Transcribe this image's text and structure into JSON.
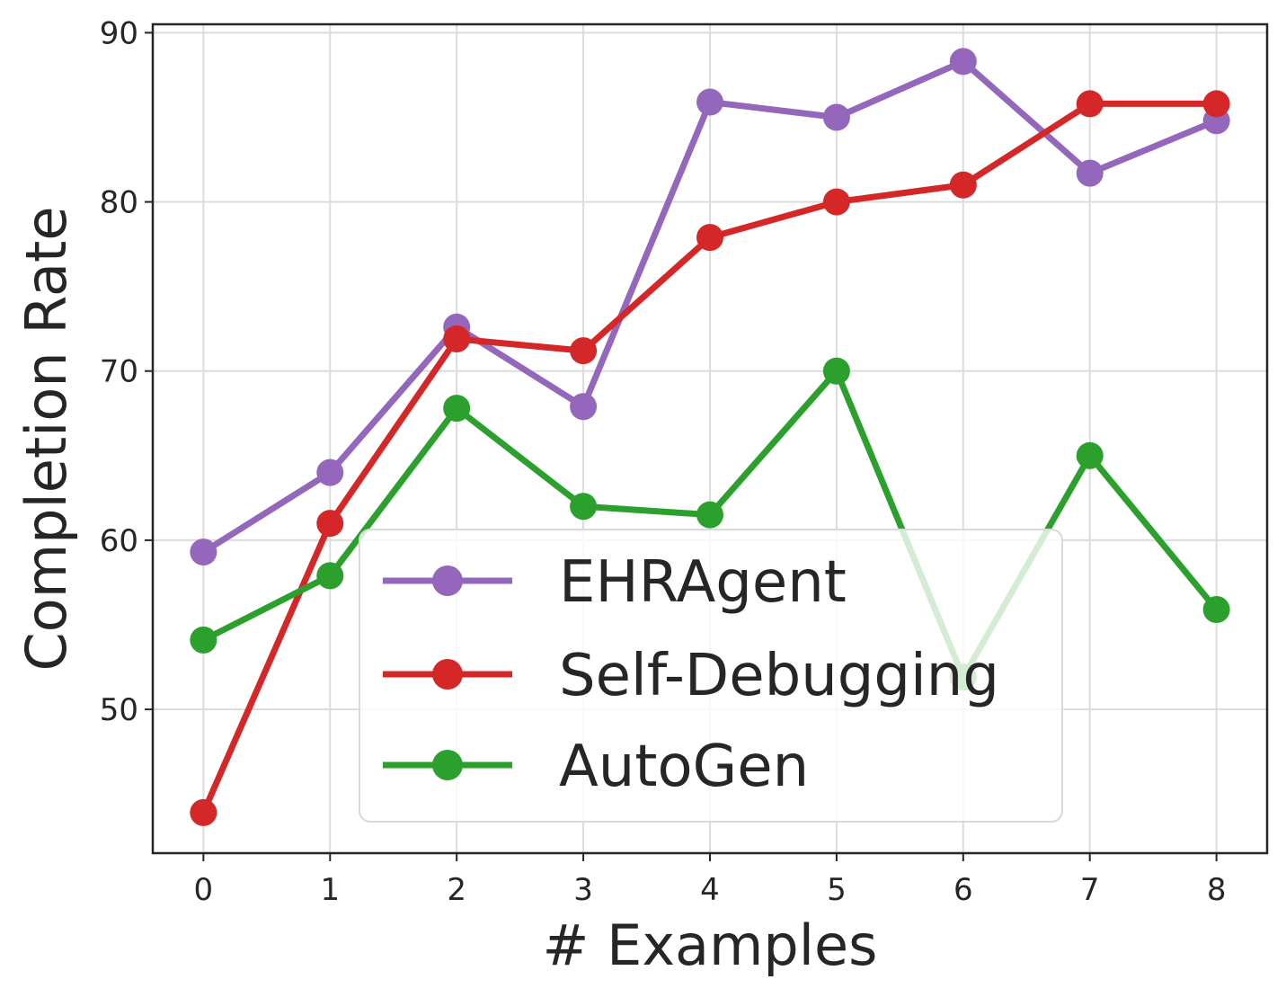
{
  "chart_data": {
    "type": "line",
    "xlabel": "# Examples",
    "ylabel": "Completion Rate",
    "x": [
      0,
      1,
      2,
      3,
      4,
      5,
      6,
      7,
      8
    ],
    "xlim": [
      -0.4,
      8.4
    ],
    "ylim": [
      41.5,
      90.5
    ],
    "xticks": [
      0,
      1,
      2,
      3,
      4,
      5,
      6,
      7,
      8
    ],
    "yticks": [
      50,
      60,
      70,
      80,
      90
    ],
    "grid": true,
    "legend_position": "lower-center",
    "series": [
      {
        "name": "EHRAgent",
        "color": "#9467bd",
        "values": [
          59.3,
          64.0,
          72.6,
          67.9,
          85.9,
          85.0,
          88.3,
          81.7,
          84.8
        ]
      },
      {
        "name": "Self-Debugging",
        "color": "#d62728",
        "values": [
          43.9,
          61.0,
          71.9,
          71.2,
          77.9,
          80.0,
          81.0,
          85.8,
          85.8
        ]
      },
      {
        "name": "AutoGen",
        "color": "#2ca02c",
        "values": [
          54.1,
          57.9,
          67.8,
          62.0,
          61.5,
          70.0,
          51.9,
          65.0,
          55.9
        ]
      }
    ]
  }
}
